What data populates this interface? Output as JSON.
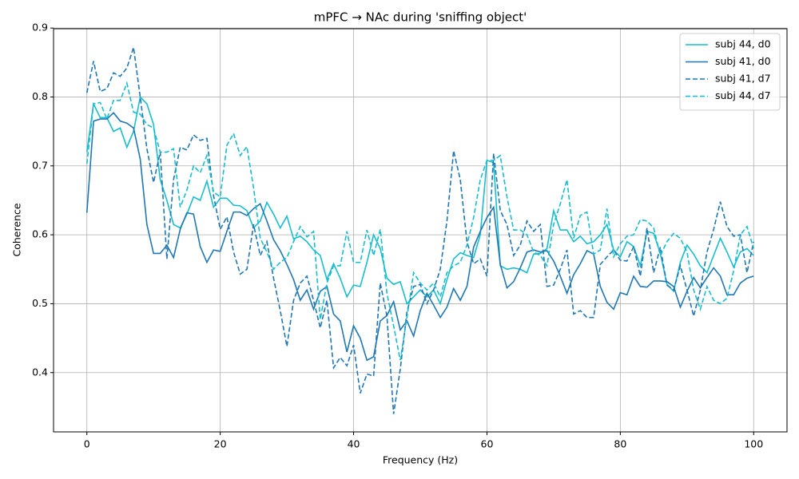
{
  "chart_data": {
    "type": "line",
    "title": "mPFC → NAc during 'sniffing object'",
    "x_label": "Frequency (Hz)",
    "y_label": "Coherence",
    "x": [
      0,
      1,
      2,
      3,
      4,
      5,
      6,
      7,
      8,
      9,
      10,
      11,
      12,
      13,
      14,
      15,
      16,
      17,
      18,
      19,
      20,
      21,
      22,
      23,
      24,
      25,
      26,
      27,
      28,
      29,
      30,
      31,
      32,
      33,
      34,
      35,
      36,
      37,
      38,
      39,
      40,
      41,
      42,
      43,
      44,
      45,
      46,
      47,
      48,
      49,
      50,
      51,
      52,
      53,
      54,
      55,
      56,
      57,
      58,
      59,
      60,
      61,
      62,
      63,
      64,
      65,
      66,
      67,
      68,
      69,
      70,
      71,
      72,
      73,
      74,
      75,
      76,
      77,
      78,
      79,
      80,
      81,
      82,
      83,
      84,
      85,
      86,
      87,
      88,
      89,
      90,
      91,
      92,
      93,
      94,
      95,
      96,
      97,
      98,
      99,
      100
    ],
    "series": [
      {
        "name": "subj 44, d0",
        "color": "#17becf",
        "linestyle": "solid",
        "values": [
          0.72,
          0.79,
          0.77,
          0.77,
          0.75,
          0.755,
          0.727,
          0.75,
          0.8,
          0.79,
          0.76,
          0.68,
          0.65,
          0.615,
          0.61,
          0.63,
          0.655,
          0.65,
          0.678,
          0.64,
          0.653,
          0.653,
          0.643,
          0.642,
          0.635,
          0.61,
          0.62,
          0.647,
          0.63,
          0.61,
          0.627,
          0.594,
          0.598,
          0.59,
          0.578,
          0.57,
          0.535,
          0.558,
          0.537,
          0.51,
          0.527,
          0.525,
          0.56,
          0.6,
          0.58,
          0.537,
          0.528,
          0.532,
          0.5,
          0.51,
          0.52,
          0.51,
          0.52,
          0.5,
          0.535,
          0.565,
          0.574,
          0.57,
          0.567,
          0.6,
          0.708,
          0.705,
          0.555,
          0.55,
          0.552,
          0.55,
          0.545,
          0.572,
          0.573,
          0.58,
          0.635,
          0.607,
          0.607,
          0.59,
          0.598,
          0.587,
          0.59,
          0.6,
          0.615,
          0.578,
          0.568,
          0.59,
          0.583,
          0.555,
          0.605,
          0.602,
          0.573,
          0.528,
          0.518,
          0.56,
          0.585,
          0.572,
          0.555,
          0.545,
          0.57,
          0.595,
          0.575,
          0.553,
          0.575,
          0.58,
          0.57
        ]
      },
      {
        "name": "subj 41, d0",
        "color": "#1f77b4",
        "linestyle": "solid",
        "values": [
          0.632,
          0.765,
          0.768,
          0.768,
          0.777,
          0.765,
          0.762,
          0.755,
          0.71,
          0.615,
          0.573,
          0.573,
          0.585,
          0.567,
          0.608,
          0.632,
          0.63,
          0.583,
          0.56,
          0.578,
          0.576,
          0.605,
          0.633,
          0.633,
          0.628,
          0.638,
          0.645,
          0.62,
          0.593,
          0.577,
          0.557,
          0.535,
          0.505,
          0.52,
          0.492,
          0.518,
          0.525,
          0.485,
          0.475,
          0.43,
          0.468,
          0.45,
          0.418,
          0.423,
          0.475,
          0.483,
          0.503,
          0.462,
          0.475,
          0.453,
          0.49,
          0.515,
          0.498,
          0.48,
          0.495,
          0.522,
          0.505,
          0.525,
          0.582,
          0.605,
          0.625,
          0.64,
          0.557,
          0.523,
          0.532,
          0.552,
          0.575,
          0.578,
          0.575,
          0.577,
          0.562,
          0.54,
          0.515,
          0.542,
          0.558,
          0.577,
          0.572,
          0.525,
          0.502,
          0.492,
          0.516,
          0.513,
          0.54,
          0.525,
          0.524,
          0.533,
          0.533,
          0.532,
          0.525,
          0.495,
          0.518,
          0.538,
          0.523,
          0.538,
          0.552,
          0.54,
          0.513,
          0.513,
          0.53,
          0.537,
          0.54
        ]
      },
      {
        "name": "subj 41, d7",
        "color": "#1f77b4",
        "linestyle": "dashed",
        "values": [
          0.806,
          0.852,
          0.808,
          0.812,
          0.835,
          0.83,
          0.842,
          0.872,
          0.8,
          0.725,
          0.676,
          0.72,
          0.565,
          0.68,
          0.727,
          0.723,
          0.745,
          0.737,
          0.74,
          0.657,
          0.608,
          0.626,
          0.575,
          0.543,
          0.55,
          0.615,
          0.57,
          0.59,
          0.537,
          0.49,
          0.438,
          0.505,
          0.53,
          0.54,
          0.505,
          0.465,
          0.505,
          0.407,
          0.422,
          0.41,
          0.44,
          0.37,
          0.398,
          0.395,
          0.53,
          0.482,
          0.34,
          0.405,
          0.488,
          0.525,
          0.528,
          0.5,
          0.52,
          0.55,
          0.62,
          0.722,
          0.68,
          0.59,
          0.558,
          0.565,
          0.54,
          0.718,
          0.635,
          0.615,
          0.57,
          0.585,
          0.62,
          0.605,
          0.615,
          0.525,
          0.527,
          0.55,
          0.578,
          0.485,
          0.49,
          0.48,
          0.48,
          0.557,
          0.568,
          0.578,
          0.563,
          0.562,
          0.583,
          0.54,
          0.61,
          0.545,
          0.582,
          0.527,
          0.52,
          0.555,
          0.52,
          0.482,
          0.52,
          0.575,
          0.608,
          0.648,
          0.612,
          0.598,
          0.6,
          0.545,
          0.59
        ]
      },
      {
        "name": "subj 44, d7",
        "color": "#17becf",
        "linestyle": "dashed",
        "values": [
          0.703,
          0.79,
          0.792,
          0.768,
          0.795,
          0.795,
          0.82,
          0.778,
          0.775,
          0.76,
          0.755,
          0.72,
          0.72,
          0.725,
          0.64,
          0.665,
          0.7,
          0.69,
          0.715,
          0.662,
          0.655,
          0.73,
          0.747,
          0.715,
          0.728,
          0.668,
          0.595,
          0.575,
          0.55,
          0.56,
          0.567,
          0.59,
          0.612,
          0.597,
          0.605,
          0.477,
          0.53,
          0.555,
          0.555,
          0.605,
          0.56,
          0.56,
          0.607,
          0.57,
          0.608,
          0.515,
          0.468,
          0.418,
          0.48,
          0.545,
          0.53,
          0.52,
          0.53,
          0.51,
          0.545,
          0.555,
          0.56,
          0.585,
          0.625,
          0.68,
          0.708,
          0.708,
          0.715,
          0.655,
          0.607,
          0.607,
          0.6,
          0.575,
          0.57,
          0.555,
          0.615,
          0.645,
          0.68,
          0.595,
          0.628,
          0.633,
          0.572,
          0.578,
          0.638,
          0.568,
          0.587,
          0.598,
          0.6,
          0.622,
          0.62,
          0.61,
          0.57,
          0.59,
          0.602,
          0.595,
          0.575,
          0.52,
          0.492,
          0.525,
          0.505,
          0.5,
          0.508,
          0.548,
          0.6,
          0.612,
          0.58
        ]
      }
    ],
    "xlim": [
      -5,
      105
    ],
    "ylim": [
      0.314,
      0.899
    ],
    "xticks": [
      0,
      20,
      40,
      60,
      80,
      100
    ],
    "yticks": [
      0.4,
      0.5,
      0.6,
      0.7,
      0.8,
      0.9
    ],
    "grid": true,
    "legend": "upper right"
  }
}
